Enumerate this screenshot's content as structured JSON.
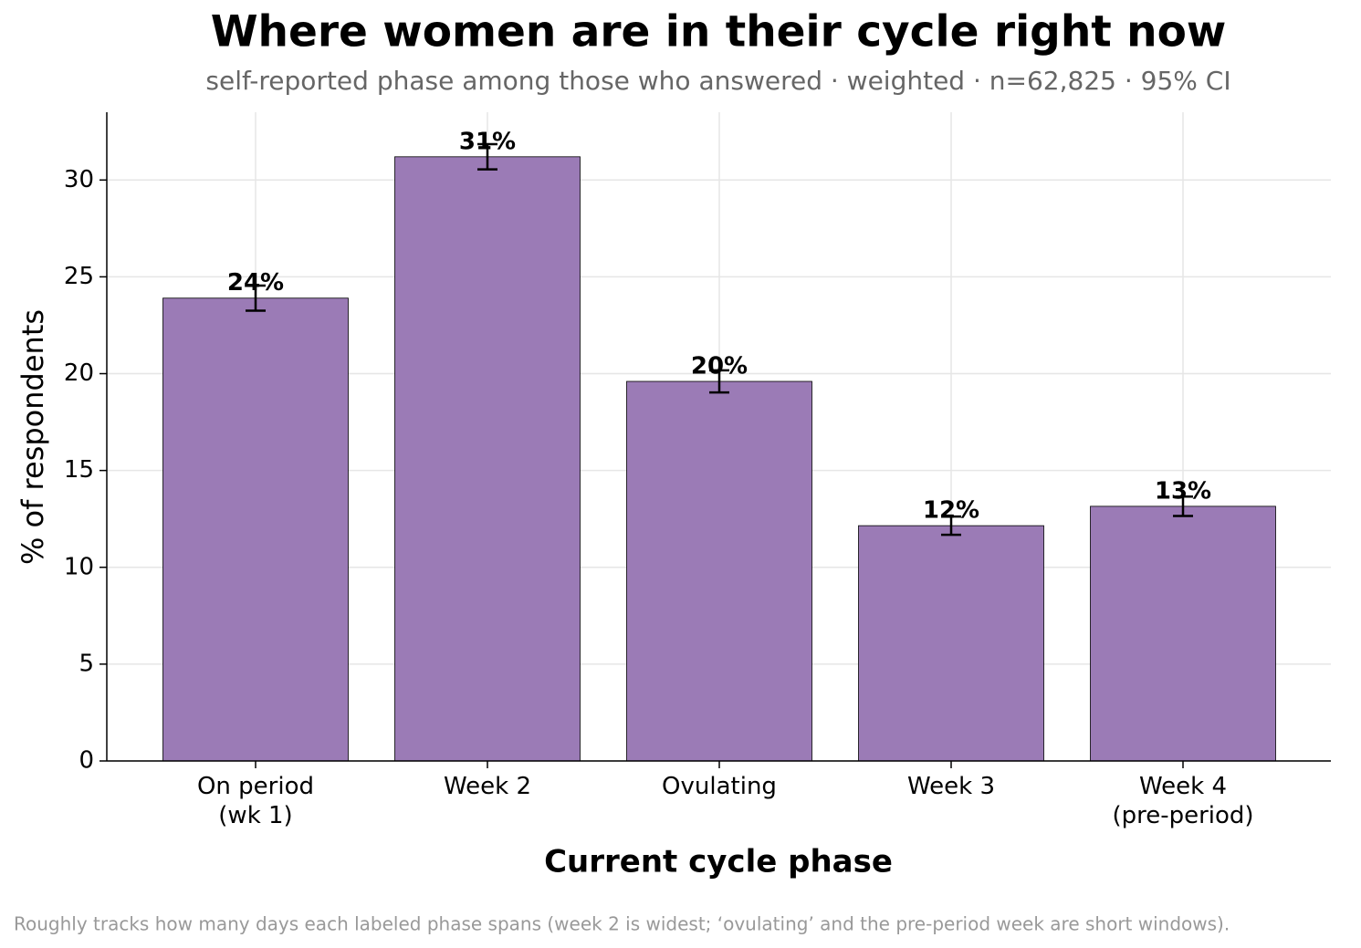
{
  "chart_data": {
    "type": "bar",
    "title": "Where women are in their cycle right now",
    "subtitle": "self-reported phase among those who answered · weighted · n=62,825 · 95% CI",
    "x_label": "Current cycle phase",
    "y_label": "% of respondents",
    "footnote": "Roughly tracks how many days each labeled phase spans (week 2 is widest; ‘ovulating’ and the pre-period week are short windows).",
    "categories": [
      "On period\n(wk 1)",
      "Week 2",
      "Ovulating",
      "Week 3",
      "Week 4\n(pre-period)"
    ],
    "values": [
      23.9,
      31.2,
      19.6,
      12.15,
      13.15
    ],
    "value_labels": [
      "24%",
      "31%",
      "20%",
      "12%",
      "13%"
    ],
    "errors": [
      0.65,
      0.65,
      0.57,
      0.47,
      0.5
    ],
    "color": "#9b7bb6",
    "ylim": [
      0,
      33.5
    ],
    "yticks": [
      0,
      5,
      10,
      15,
      20,
      25,
      30
    ],
    "grid": true
  }
}
